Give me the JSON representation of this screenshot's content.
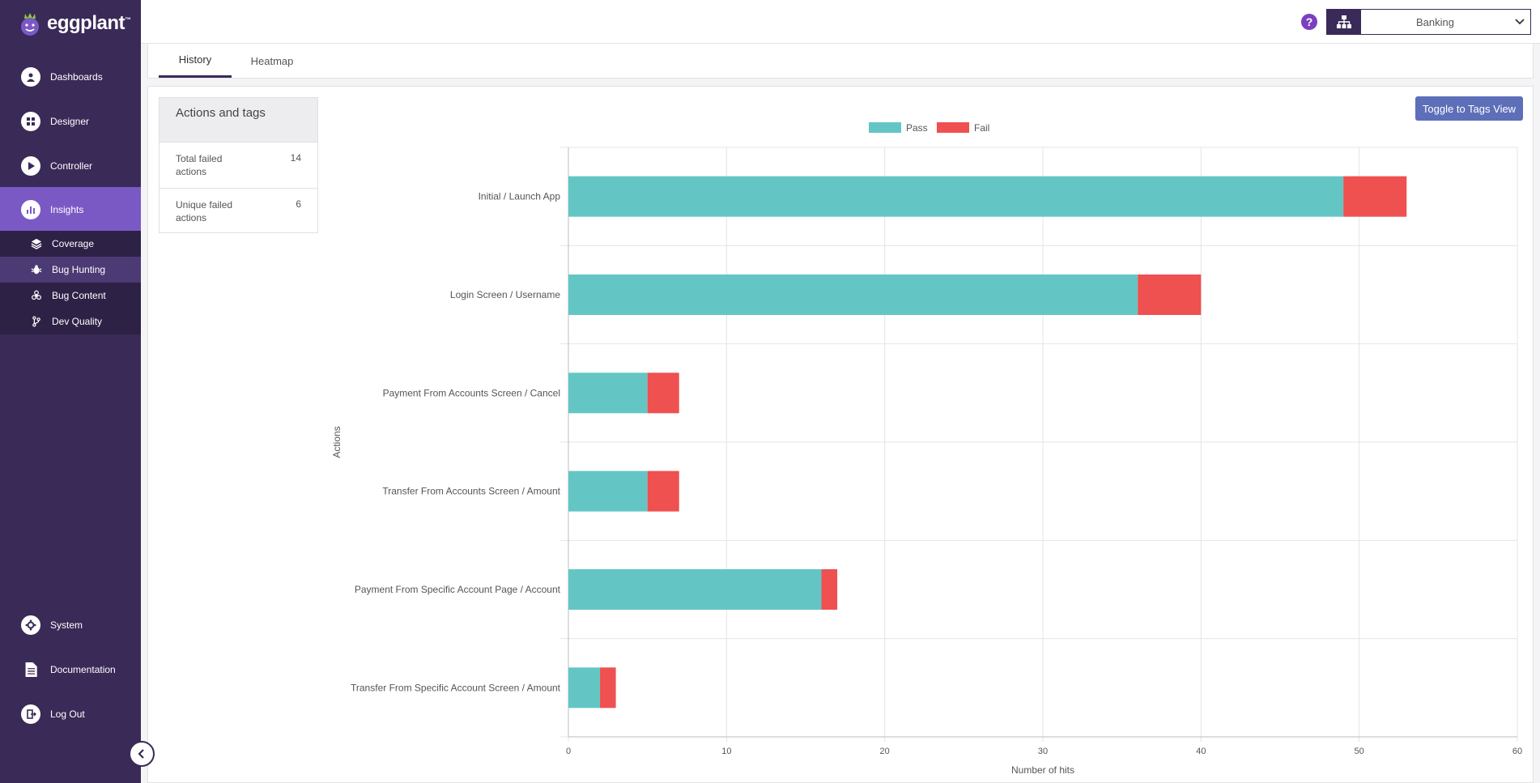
{
  "app": {
    "logo_text": "eggplant",
    "logo_tm": "™"
  },
  "sidebar": {
    "items": [
      {
        "label": "Dashboards",
        "icon": "dashboards-icon"
      },
      {
        "label": "Designer",
        "icon": "designer-icon"
      },
      {
        "label": "Controller",
        "icon": "controller-icon"
      },
      {
        "label": "Insights",
        "icon": "insights-icon"
      }
    ],
    "sub_items": [
      {
        "label": "Coverage",
        "icon": "layers-icon"
      },
      {
        "label": "Bug Hunting",
        "icon": "bug-icon"
      },
      {
        "label": "Bug Content",
        "icon": "biohazard-icon"
      },
      {
        "label": "Dev Quality",
        "icon": "branch-icon"
      }
    ],
    "bottom_items": [
      {
        "label": "System",
        "icon": "system-gear-icon"
      },
      {
        "label": "Documentation",
        "icon": "document-icon"
      },
      {
        "label": "Log Out",
        "icon": "logout-icon"
      }
    ],
    "active_item": "Insights",
    "active_sub_item": "Bug Hunting"
  },
  "topbar": {
    "help_glyph": "?",
    "project": "Banking"
  },
  "tabs": [
    {
      "label": "History",
      "active": true
    },
    {
      "label": "Heatmap",
      "active": false
    }
  ],
  "stats": {
    "title": "Actions and tags",
    "rows": [
      {
        "label": "Total failed actions",
        "value": "14"
      },
      {
        "label": "Unique failed actions",
        "value": "6"
      }
    ]
  },
  "toggle_button": "Toggle to Tags View",
  "colors": {
    "sidebar_bg": "#3a2a57",
    "active_nav": "#7b59c5",
    "pass": "#63c6c4",
    "fail": "#ef5050",
    "button": "#5d6fb8"
  },
  "chart_data": {
    "type": "bar",
    "orientation": "horizontal",
    "stacked": true,
    "categories": [
      "Initial / Launch App",
      "Login Screen / Username",
      "Payment From Accounts Screen / Cancel",
      "Transfer From Accounts Screen / Amount",
      "Payment From Specific Account Page / Account",
      "Transfer From Specific Account Screen / Amount"
    ],
    "series": [
      {
        "name": "Pass",
        "color": "#63c6c4",
        "values": [
          49,
          36,
          5,
          5,
          16,
          2
        ]
      },
      {
        "name": "Fail",
        "color": "#ef5050",
        "values": [
          4,
          4,
          2,
          2,
          1,
          1
        ]
      }
    ],
    "xlabel": "Number of hits",
    "ylabel": "Actions",
    "xlim": [
      0,
      60
    ],
    "xticks": [
      0,
      10,
      20,
      30,
      40,
      50,
      60
    ],
    "grid": true,
    "legend": "top-center"
  }
}
